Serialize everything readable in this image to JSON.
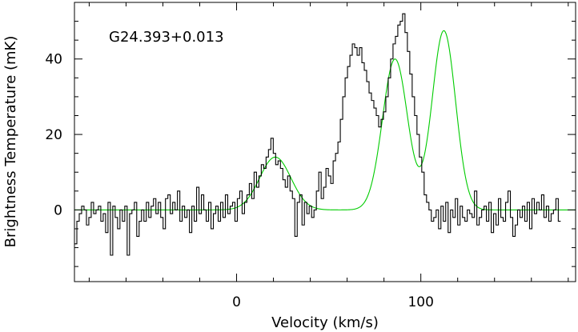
{
  "chart_data": {
    "type": "line",
    "title": "",
    "annotation": "G24.393+0.013",
    "xlabel": "Velocity (km/s)",
    "ylabel": "Brightness Temperature (mK)",
    "xlim": [
      -88,
      184
    ],
    "ylim": [
      -19,
      55
    ],
    "x_ticks": [
      0,
      100
    ],
    "x_tick_labels": [
      "0",
      "100"
    ],
    "y_ticks": [
      0,
      20,
      40
    ],
    "y_tick_labels": [
      "0",
      "20",
      "40"
    ],
    "grid": false,
    "legend": "none",
    "series": [
      {
        "style": "steps",
        "color": "#000000",
        "x_start": -88,
        "x_step": 1.3,
        "values": [
          -9,
          -3,
          -1,
          1,
          0,
          -4,
          -2,
          2,
          -1,
          0,
          1,
          -3,
          -1,
          -6,
          2,
          -12,
          1,
          -2,
          -5,
          0,
          -3,
          1,
          -12,
          -1,
          0,
          2,
          -7,
          -3,
          0,
          -3,
          2,
          -2,
          1,
          3,
          -1,
          2,
          -2,
          -5,
          3,
          4,
          -1,
          2,
          0,
          5,
          -3,
          1,
          -2,
          0,
          -6,
          1,
          -3,
          6,
          -1,
          4,
          0,
          -3,
          2,
          -5,
          -1,
          1,
          -3,
          2,
          -2,
          4,
          -1,
          1,
          2,
          -3,
          3,
          5,
          -1,
          2,
          4,
          7,
          3,
          10,
          6,
          9,
          12,
          11,
          14,
          16,
          19,
          15,
          12,
          13,
          11,
          8,
          6,
          9,
          5,
          3,
          -7,
          2,
          4,
          -4,
          2,
          -1,
          1,
          -2,
          0,
          5,
          10,
          3,
          6,
          11,
          9,
          7,
          13,
          15,
          18,
          24,
          30,
          35,
          38,
          41,
          44,
          43,
          41,
          43,
          39,
          37,
          34,
          31,
          29,
          27,
          25,
          22,
          24,
          26,
          30,
          35,
          40,
          44,
          46,
          49,
          50,
          52,
          47,
          42,
          36,
          30,
          25,
          20,
          14,
          10,
          4,
          2,
          0,
          -3,
          -2,
          0,
          -5,
          1,
          -3,
          2,
          -6,
          0,
          -2,
          3,
          -4,
          1,
          -2,
          -3,
          0,
          -1,
          -2,
          5,
          -4,
          -2,
          0,
          1,
          -3,
          2,
          -6,
          -1,
          -4,
          3,
          -2,
          -3,
          2,
          5,
          -2,
          -7,
          -4,
          0,
          -2,
          1,
          -3,
          2,
          -5,
          3,
          -1,
          2,
          0,
          4,
          -2,
          1,
          -3,
          -1,
          0,
          3,
          -3
        ]
      },
      {
        "style": "smooth",
        "color": "#00cc00",
        "components": [
          {
            "amplitude": 14,
            "center": 21,
            "fwhm": 20
          },
          {
            "amplitude": 40,
            "center": 86,
            "fwhm": 16
          },
          {
            "amplitude": 47.5,
            "center": 112.5,
            "fwhm": 15
          }
        ]
      }
    ]
  }
}
